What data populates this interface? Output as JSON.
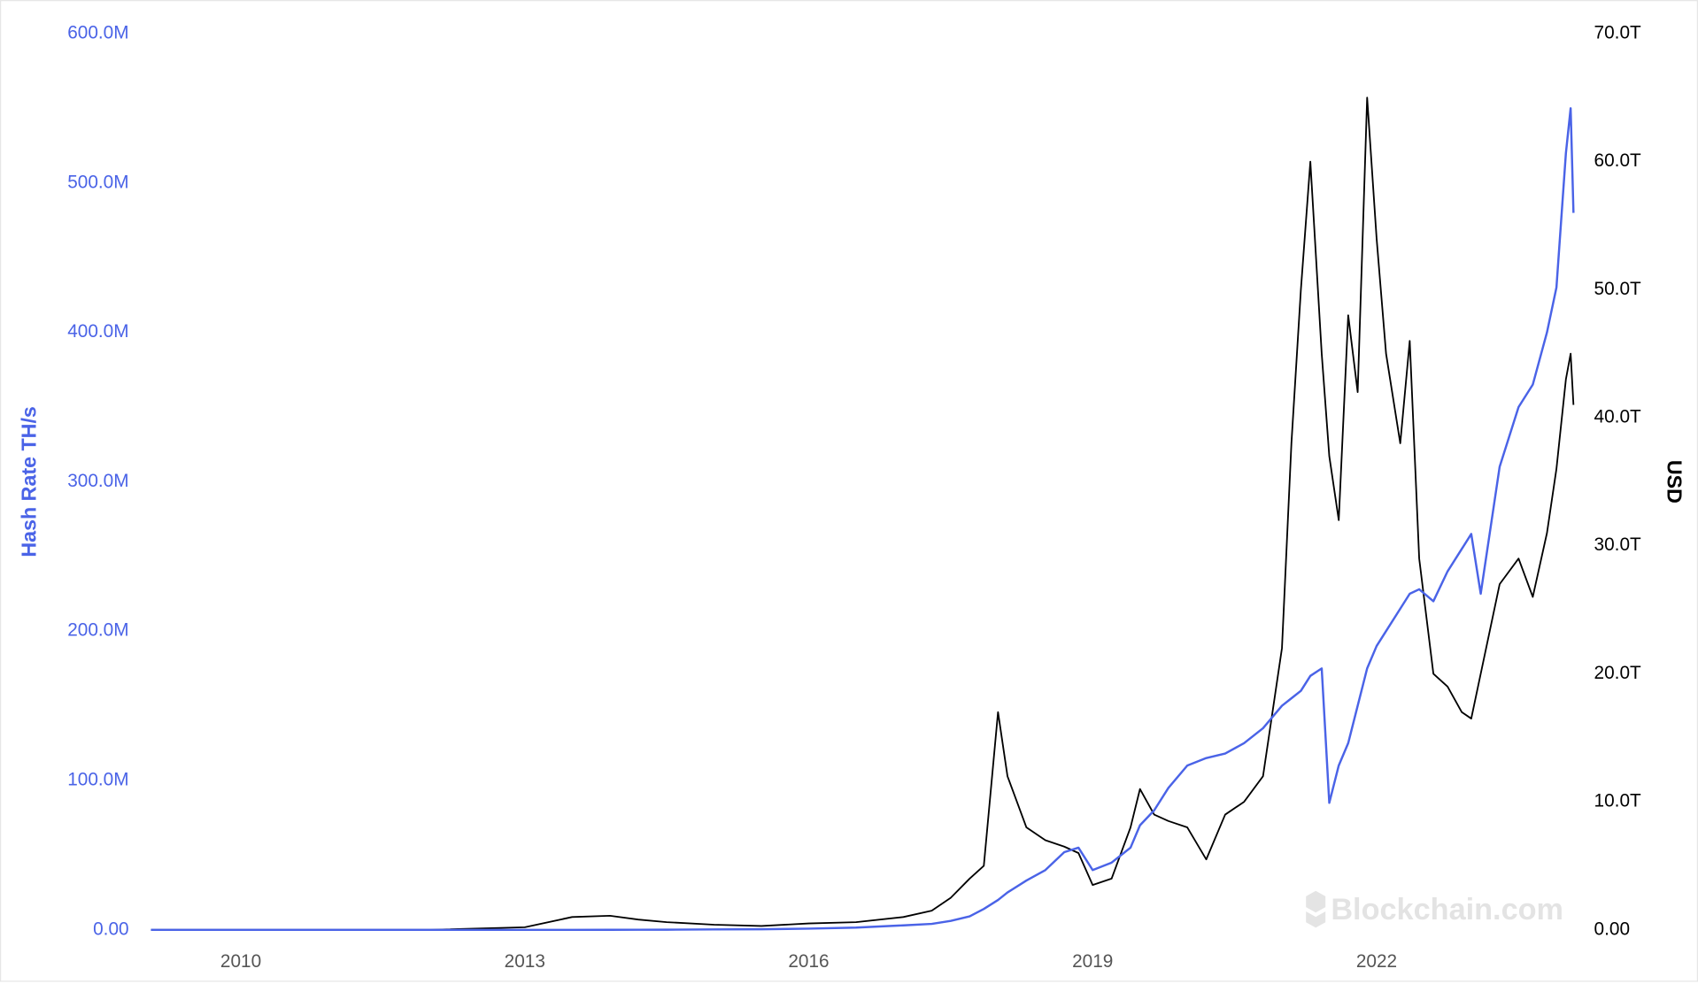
{
  "chart_data": {
    "type": "line",
    "ylabel": "Hash Rate TH/s",
    "y2label": "USD",
    "watermark": "Blockchain.com",
    "x": [
      2009.05,
      2010,
      2011,
      2012,
      2013,
      2013.5,
      2013.9,
      2014.2,
      2014.5,
      2015,
      2015.5,
      2016,
      2016.5,
      2017,
      2017.3,
      2017.5,
      2017.7,
      2017.85,
      2018.0,
      2018.1,
      2018.3,
      2018.5,
      2018.7,
      2018.85,
      2019.0,
      2019.2,
      2019.4,
      2019.5,
      2019.65,
      2019.8,
      2020.0,
      2020.2,
      2020.4,
      2020.6,
      2020.8,
      2021.0,
      2021.1,
      2021.2,
      2021.3,
      2021.42,
      2021.5,
      2021.6,
      2021.7,
      2021.8,
      2021.9,
      2022.0,
      2022.1,
      2022.25,
      2022.35,
      2022.45,
      2022.6,
      2022.75,
      2022.9,
      2023.0,
      2023.1,
      2023.3,
      2023.5,
      2023.65,
      2023.8,
      2023.9,
      2024.0,
      2024.05,
      2024.08
    ],
    "xlim": [
      2008.92,
      2024.16
    ],
    "xticks": [
      2010,
      2013,
      2016,
      2019,
      2022
    ],
    "ylim": [
      0,
      600000000
    ],
    "yticks": [
      {
        "value": 0,
        "label": "0.00"
      },
      {
        "value": 100000000,
        "label": "100.0M"
      },
      {
        "value": 200000000,
        "label": "200.0M"
      },
      {
        "value": 300000000,
        "label": "300.0M"
      },
      {
        "value": 400000000,
        "label": "400.0M"
      },
      {
        "value": 500000000,
        "label": "500.0M"
      },
      {
        "value": 600000000,
        "label": "600.0M"
      }
    ],
    "y2lim": [
      0,
      70000000000000
    ],
    "y2ticks": [
      {
        "value": 0,
        "label": "0.00"
      },
      {
        "value": 10000000000000,
        "label": "10.0T"
      },
      {
        "value": 20000000000000,
        "label": "20.0T"
      },
      {
        "value": 30000000000000,
        "label": "30.0T"
      },
      {
        "value": 40000000000000,
        "label": "40.0T"
      },
      {
        "value": 50000000000000,
        "label": "50.0T"
      },
      {
        "value": 60000000000000,
        "label": "60.0T"
      },
      {
        "value": 70000000000000,
        "label": "70.0T"
      }
    ],
    "series": [
      {
        "color": "#4a63e7",
        "values": [
          0,
          0,
          0,
          0,
          0,
          0,
          10000.0,
          50000.0,
          100000.0,
          300000.0,
          400000.0,
          800000.0,
          1500000.0,
          3000000.0,
          4000000.0,
          6000000.0,
          9000000.0,
          14000000.0,
          20000000.0,
          25000000.0,
          33000000.0,
          40000000.0,
          52000000.0,
          55000000.0,
          40000000.0,
          45000000.0,
          55000000.0,
          70000000.0,
          80000000.0,
          95000000.0,
          110000000.0,
          115000000.0,
          118000000.0,
          125000000.0,
          135000000.0,
          150000000.0,
          155000000.0,
          160000000.0,
          170000000.0,
          175000000.0,
          85000000.0,
          110000000.0,
          125000000.0,
          150000000.0,
          175000000.0,
          190000000.0,
          200000000.0,
          215000000.0,
          225000000.0,
          228000000.0,
          220000000.0,
          240000000.0,
          255000000.0,
          265000000.0,
          225000000.0,
          310000000.0,
          350000000.0,
          365000000.0,
          400000000.0,
          430000000.0,
          520000000.0,
          550000000.0,
          480000000.0
        ]
      },
      {
        "color": "#000000",
        "axis": "y2",
        "values": [
          0,
          0,
          0,
          0,
          200000000000.0,
          1000000000000.0,
          1100000000000.0,
          800000000000.0,
          600000000000.0,
          400000000000.0,
          300000000000.0,
          500000000000.0,
          600000000000.0,
          1000000000000.0,
          1500000000000.0,
          2500000000000.0,
          4000000000000.0,
          5000000000000.0,
          17000000000000.0,
          12000000000000.0,
          8000000000000.0,
          7000000000000.0,
          6500000000000.0,
          6000000000000.0,
          3500000000000.0,
          4000000000000.0,
          8000000000000.0,
          11000000000000.0,
          9000000000000.0,
          8500000000000.0,
          8000000000000.0,
          5500000000000.0,
          9000000000000.0,
          10000000000000.0,
          12000000000000.0,
          22000000000000.0,
          38000000000000.0,
          50000000000000.0,
          60000000000000.0,
          45000000000000.0,
          37000000000000.0,
          32000000000000.0,
          48000000000000.0,
          42000000000000.0,
          65000000000000.0,
          54000000000000.0,
          45000000000000.0,
          38000000000000.0,
          46000000000000.0,
          29000000000000.0,
          20000000000000.0,
          19000000000000.0,
          17000000000000.0,
          16500000000000.0,
          20000000000000.0,
          27000000000000.0,
          29000000000000.0,
          26000000000000.0,
          31000000000000.0,
          36000000000000.0,
          43000000000000.0,
          45000000000000.0,
          41000000000000.0
        ]
      }
    ]
  }
}
